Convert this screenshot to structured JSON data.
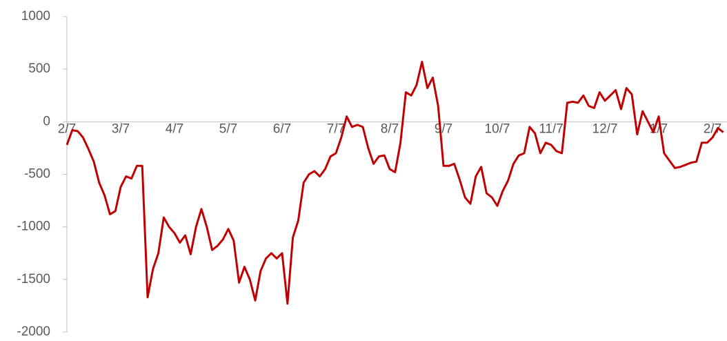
{
  "chart_data": {
    "type": "line",
    "categories": [
      "2/7",
      null,
      null,
      null,
      null,
      null,
      null,
      null,
      null,
      null,
      "3/7",
      null,
      null,
      null,
      null,
      null,
      null,
      null,
      null,
      null,
      "4/7",
      null,
      null,
      null,
      null,
      null,
      null,
      null,
      null,
      null,
      "5/7",
      null,
      null,
      null,
      null,
      null,
      null,
      null,
      null,
      null,
      "6/7",
      null,
      null,
      null,
      null,
      null,
      null,
      null,
      null,
      null,
      "7/7",
      null,
      null,
      null,
      null,
      null,
      null,
      null,
      null,
      null,
      "8/7",
      null,
      null,
      null,
      null,
      null,
      null,
      null,
      null,
      null,
      "9/7",
      null,
      null,
      null,
      null,
      null,
      null,
      null,
      null,
      null,
      "10/7",
      null,
      null,
      null,
      null,
      null,
      null,
      null,
      null,
      null,
      "11/7",
      null,
      null,
      null,
      null,
      null,
      null,
      null,
      null,
      null,
      "12/7",
      null,
      null,
      null,
      null,
      null,
      null,
      null,
      null,
      null,
      "1/7",
      null,
      null,
      null,
      null,
      null,
      null,
      null,
      null,
      null,
      "2/7",
      null,
      null
    ],
    "series": [
      {
        "color": "#c00000",
        "values": [
          -220,
          -80,
          -90,
          -150,
          -260,
          -380,
          -580,
          -700,
          -880,
          -850,
          -620,
          -520,
          -540,
          -420,
          -420,
          -1670,
          -1400,
          -1250,
          -910,
          -1000,
          -1060,
          -1150,
          -1080,
          -1260,
          -1000,
          -830,
          -1000,
          -1220,
          -1180,
          -1120,
          -1020,
          -1130,
          -1530,
          -1380,
          -1500,
          -1700,
          -1420,
          -1300,
          -1250,
          -1300,
          -1250,
          -1730,
          -1100,
          -940,
          -580,
          -500,
          -470,
          -520,
          -450,
          -330,
          -300,
          -150,
          50,
          -50,
          -30,
          -50,
          -250,
          -400,
          -330,
          -320,
          -450,
          -480,
          -200,
          280,
          250,
          350,
          570,
          320,
          420,
          150,
          -420,
          -420,
          -400,
          -550,
          -720,
          -780,
          -520,
          -430,
          -680,
          -720,
          -800,
          -660,
          -560,
          -400,
          -320,
          -300,
          -50,
          -110,
          -300,
          -200,
          -220,
          -280,
          -300,
          180,
          190,
          180,
          250,
          150,
          130,
          280,
          200,
          250,
          300,
          120,
          320,
          260,
          -120,
          100,
          0,
          -100,
          50,
          -300,
          -370,
          -440,
          -430,
          -410,
          -390,
          -380,
          -200,
          -200,
          -150,
          -60,
          -100
        ]
      }
    ],
    "ylim": [
      -2000,
      1000
    ],
    "yticks": [
      -2000,
      -1500,
      -1000,
      -500,
      0,
      500,
      1000
    ]
  }
}
